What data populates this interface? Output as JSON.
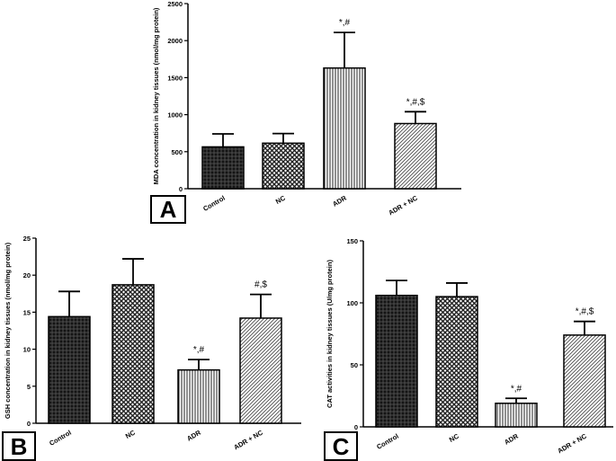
{
  "panels": [
    "A",
    "B",
    "C"
  ],
  "chart_data": [
    {
      "panel": "A",
      "type": "bar",
      "categories": [
        "Control",
        "NC",
        "ADR",
        "ADR + NC"
      ],
      "values": [
        565,
        615,
        1630,
        880
      ],
      "errors": [
        175,
        130,
        480,
        160
      ],
      "annotations": [
        "",
        "",
        "*,#",
        "*,#,$"
      ],
      "ylabel": "MDA concentration in kidney tissues (nmol/mg protein)",
      "ylim": [
        0,
        2500
      ],
      "yticks": [
        0,
        500,
        1000,
        1500,
        2000,
        2500
      ],
      "patterns": [
        "dense-cross",
        "check",
        "vertical",
        "diagonal"
      ],
      "grid": false
    },
    {
      "panel": "B",
      "type": "bar",
      "categories": [
        "Control",
        "NC",
        "ADR",
        "ADR + NC"
      ],
      "values": [
        14.4,
        18.7,
        7.2,
        14.2
      ],
      "errors": [
        3.4,
        3.5,
        1.4,
        3.2
      ],
      "annotations": [
        "",
        "",
        "*,#",
        "#,$"
      ],
      "ylabel": "GSH concentration in kidney tissues (nmol/mg protein)",
      "ylim": [
        0,
        25
      ],
      "yticks": [
        0,
        5,
        10,
        15,
        20,
        25
      ],
      "patterns": [
        "dense-cross",
        "check",
        "vertical",
        "diagonal"
      ],
      "grid": false
    },
    {
      "panel": "C",
      "type": "bar",
      "categories": [
        "Control",
        "NC",
        "ADR",
        "ADR + NC"
      ],
      "values": [
        106,
        105,
        19,
        74
      ],
      "errors": [
        12,
        11,
        4,
        11
      ],
      "annotations": [
        "",
        "",
        "*,#",
        "*,#,$"
      ],
      "ylabel": "CAT activities in kidney tissues (U/mg protein)",
      "ylim": [
        0,
        150
      ],
      "yticks": [
        0,
        50,
        100,
        150
      ],
      "patterns": [
        "dense-cross",
        "check",
        "vertical",
        "diagonal"
      ],
      "grid": false
    }
  ]
}
